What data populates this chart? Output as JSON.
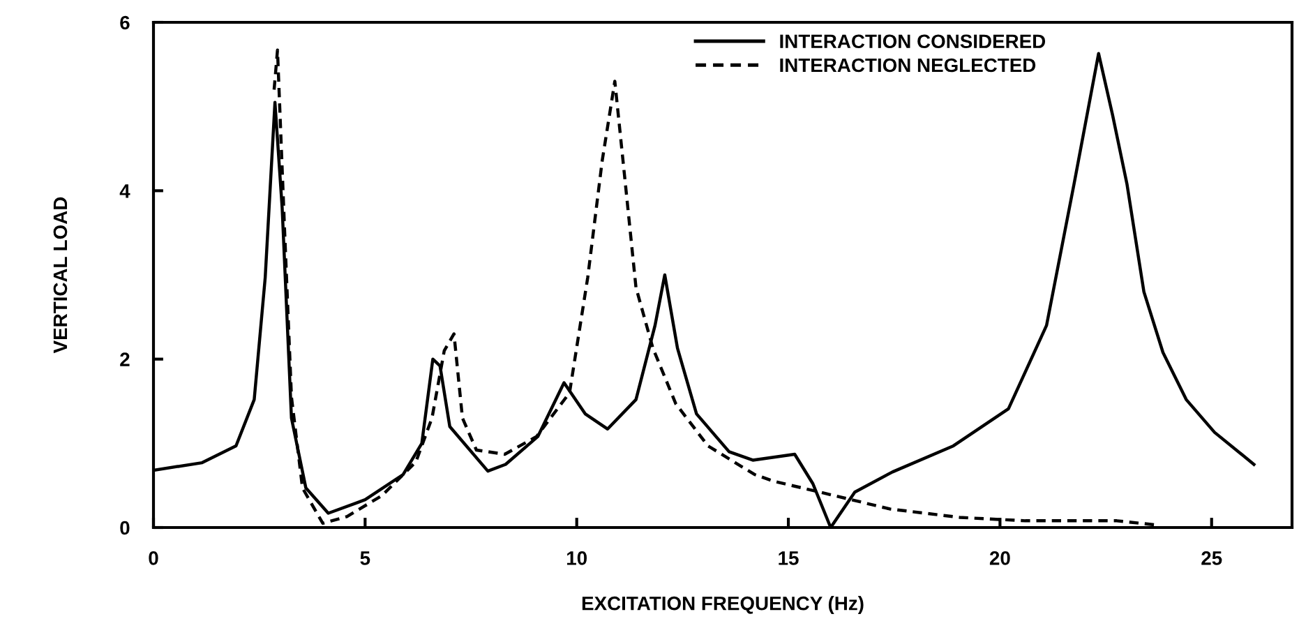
{
  "chart_data": {
    "type": "line",
    "xlabel": "EXCITATION FREQUENCY (Hz)",
    "ylabel": "VERTICAL LOAD",
    "xlim": [
      0,
      26.9
    ],
    "xticks": [
      0,
      5,
      10,
      15,
      20,
      25
    ],
    "ylim": [
      0,
      6
    ],
    "yticks": [
      0,
      2,
      4,
      6
    ],
    "grid": false,
    "legend": "top",
    "marker": "none",
    "series": [
      {
        "name": "INTERACTION CONSIDERED",
        "color": "#000000",
        "line_style": "solid",
        "x": [
          0,
          1.15,
          1.95,
          2.38,
          2.64,
          2.87,
          3.04,
          3.26,
          3.6,
          4.13,
          5.0,
          5.9,
          6.34,
          6.6,
          6.77,
          7.0,
          7.9,
          8.32,
          9.08,
          9.7,
          10.2,
          10.73,
          11.4,
          11.85,
          12.08,
          12.38,
          12.83,
          13.6,
          14.16,
          15.15,
          15.58,
          16.0,
          16.57,
          17.46,
          18.9,
          20.2,
          21.1,
          21.75,
          22.33,
          22.66,
          23.0,
          23.4,
          23.85,
          24.4,
          25.07,
          26.0
        ],
        "values": [
          0.68,
          0.77,
          0.97,
          1.52,
          2.97,
          5.05,
          3.8,
          1.3,
          0.47,
          0.17,
          0.33,
          0.63,
          1.0,
          2.0,
          1.92,
          1.2,
          0.67,
          0.75,
          1.08,
          1.72,
          1.35,
          1.17,
          1.52,
          2.4,
          3.0,
          2.13,
          1.35,
          0.9,
          0.8,
          0.87,
          0.52,
          0.0,
          0.42,
          0.66,
          0.97,
          1.41,
          2.4,
          4.08,
          5.63,
          4.9,
          4.08,
          2.8,
          2.08,
          1.52,
          1.13,
          0.75
        ]
      },
      {
        "name": "INTERACTION NEGLECTED",
        "color": "#000000",
        "line_style": "dashed",
        "x": [
          2.85,
          2.93,
          3.1,
          3.26,
          3.52,
          4.0,
          4.57,
          5.4,
          6.2,
          6.58,
          6.87,
          7.1,
          7.3,
          7.63,
          8.3,
          9.05,
          9.83,
          10.26,
          10.6,
          10.9,
          11.15,
          11.4,
          11.8,
          12.34,
          13.1,
          14.2,
          14.65,
          15.75,
          17.4,
          19.05,
          20.6,
          22.76,
          23.7
        ],
        "values": [
          5.2,
          5.67,
          3.5,
          1.55,
          0.47,
          0.05,
          0.13,
          0.38,
          0.78,
          1.3,
          2.1,
          2.3,
          1.3,
          0.92,
          0.87,
          1.08,
          1.6,
          2.97,
          4.35,
          5.3,
          4.08,
          2.85,
          2.13,
          1.47,
          0.97,
          0.63,
          0.55,
          0.42,
          0.22,
          0.12,
          0.08,
          0.08,
          0.03
        ]
      }
    ]
  }
}
